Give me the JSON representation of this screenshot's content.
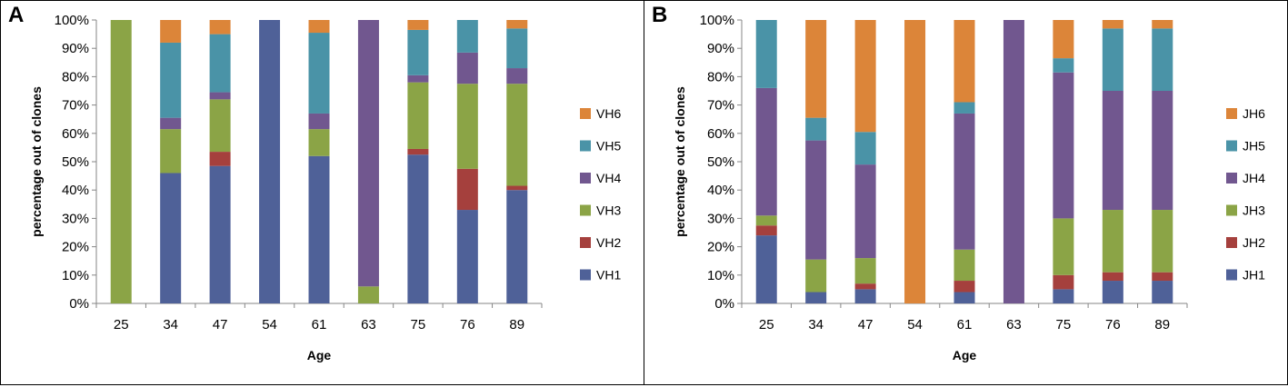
{
  "chart_data": [
    {
      "type": "bar",
      "stacked": true,
      "percent": true,
      "panel_label": "A",
      "categories": [
        "25",
        "34",
        "47",
        "54",
        "61",
        "63",
        "75",
        "76",
        "89"
      ],
      "xlabel": "Age",
      "ylabel": "percentage out of clones",
      "ylim": [
        0,
        100
      ],
      "yticks": [
        "0%",
        "10%",
        "20%",
        "30%",
        "40%",
        "50%",
        "60%",
        "70%",
        "80%",
        "90%",
        "100%"
      ],
      "legend_position": "right",
      "series": [
        {
          "name": "VH1",
          "color": "#4F6198",
          "values": [
            0,
            46,
            48.5,
            100,
            52,
            0,
            52.5,
            33,
            40
          ]
        },
        {
          "name": "VH2",
          "color": "#A5403D",
          "values": [
            0,
            0,
            5,
            0,
            0,
            0,
            2,
            14.5,
            1.5
          ]
        },
        {
          "name": "VH3",
          "color": "#8BA446",
          "values": [
            100,
            15.5,
            18.5,
            0,
            9.5,
            6,
            23.5,
            30,
            36
          ]
        },
        {
          "name": "VH4",
          "color": "#71578F",
          "values": [
            0,
            4,
            2.5,
            0,
            5.5,
            94,
            2.5,
            11,
            5.5
          ]
        },
        {
          "name": "VH5",
          "color": "#4A93A7",
          "values": [
            0,
            26.5,
            20.5,
            0,
            28.5,
            0,
            16,
            11.5,
            14
          ]
        },
        {
          "name": "VH6",
          "color": "#DC8539",
          "values": [
            0,
            8,
            5,
            0,
            4.5,
            0,
            3.5,
            0,
            3
          ]
        }
      ]
    },
    {
      "type": "bar",
      "stacked": true,
      "percent": true,
      "panel_label": "B",
      "categories": [
        "25",
        "34",
        "47",
        "54",
        "61",
        "63",
        "75",
        "76",
        "89"
      ],
      "xlabel": "Age",
      "ylabel": "percentage out of clones",
      "ylim": [
        0,
        100
      ],
      "yticks": [
        "0%",
        "10%",
        "20%",
        "30%",
        "40%",
        "50%",
        "60%",
        "70%",
        "80%",
        "90%",
        "100%"
      ],
      "legend_position": "right",
      "series": [
        {
          "name": "JH1",
          "color": "#4F6198",
          "values": [
            24,
            4,
            5,
            0,
            4,
            0,
            5,
            8,
            8
          ]
        },
        {
          "name": "JH2",
          "color": "#A5403D",
          "values": [
            3.5,
            0,
            2,
            0,
            4,
            0,
            5,
            3,
            3
          ]
        },
        {
          "name": "JH3",
          "color": "#8BA446",
          "values": [
            3.5,
            11.5,
            9,
            0,
            11,
            0,
            20,
            22,
            22
          ]
        },
        {
          "name": "JH4",
          "color": "#71578F",
          "values": [
            45,
            42,
            33,
            0,
            48,
            100,
            51.5,
            42,
            42
          ]
        },
        {
          "name": "JH5",
          "color": "#4A93A7",
          "values": [
            24,
            8,
            11.5,
            0,
            4,
            0,
            5,
            22,
            22
          ]
        },
        {
          "name": "JH6",
          "color": "#DC8539",
          "values": [
            0,
            34.5,
            39.5,
            100,
            29,
            0,
            13.5,
            3,
            3
          ]
        }
      ]
    }
  ]
}
